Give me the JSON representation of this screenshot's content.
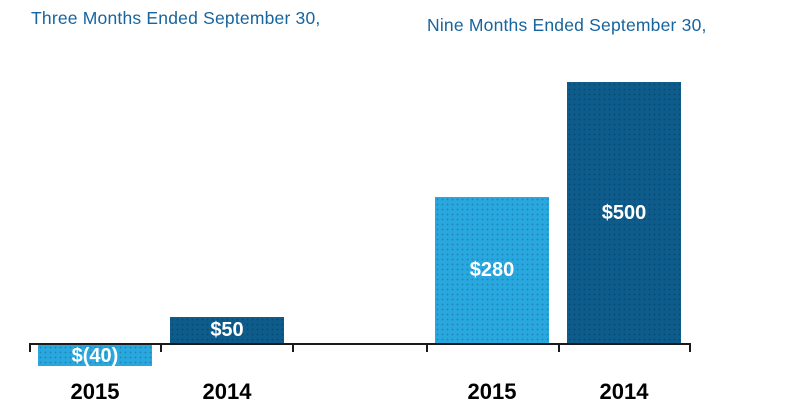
{
  "colors": {
    "light_blue": "#29A8E0",
    "dark_blue": "#0E5C8C",
    "title_text": "#17649E",
    "axis": "#1A1A1A",
    "value_label": "#FFFFFF",
    "category_label": "#000000"
  },
  "chart_data": {
    "type": "bar",
    "title": "",
    "xlabel": "",
    "ylabel": "",
    "ylim": [
      -40,
      500
    ],
    "grid": false,
    "legend": false,
    "value_labels": "inside bars, white bold",
    "groups": [
      {
        "title": "Three Months Ended September 30,",
        "bars": [
          {
            "category": "2015",
            "value": -40,
            "label": "$(40)",
            "color_key": "light_blue"
          },
          {
            "category": "2014",
            "value": 50,
            "label": "$50",
            "color_key": "dark_blue"
          }
        ]
      },
      {
        "title": "Nine Months Ended September 30,",
        "bars": [
          {
            "category": "2015",
            "value": 280,
            "label": "$280",
            "color_key": "light_blue"
          },
          {
            "category": "2014",
            "value": 500,
            "label": "$500",
            "color_key": "dark_blue"
          }
        ]
      }
    ]
  }
}
